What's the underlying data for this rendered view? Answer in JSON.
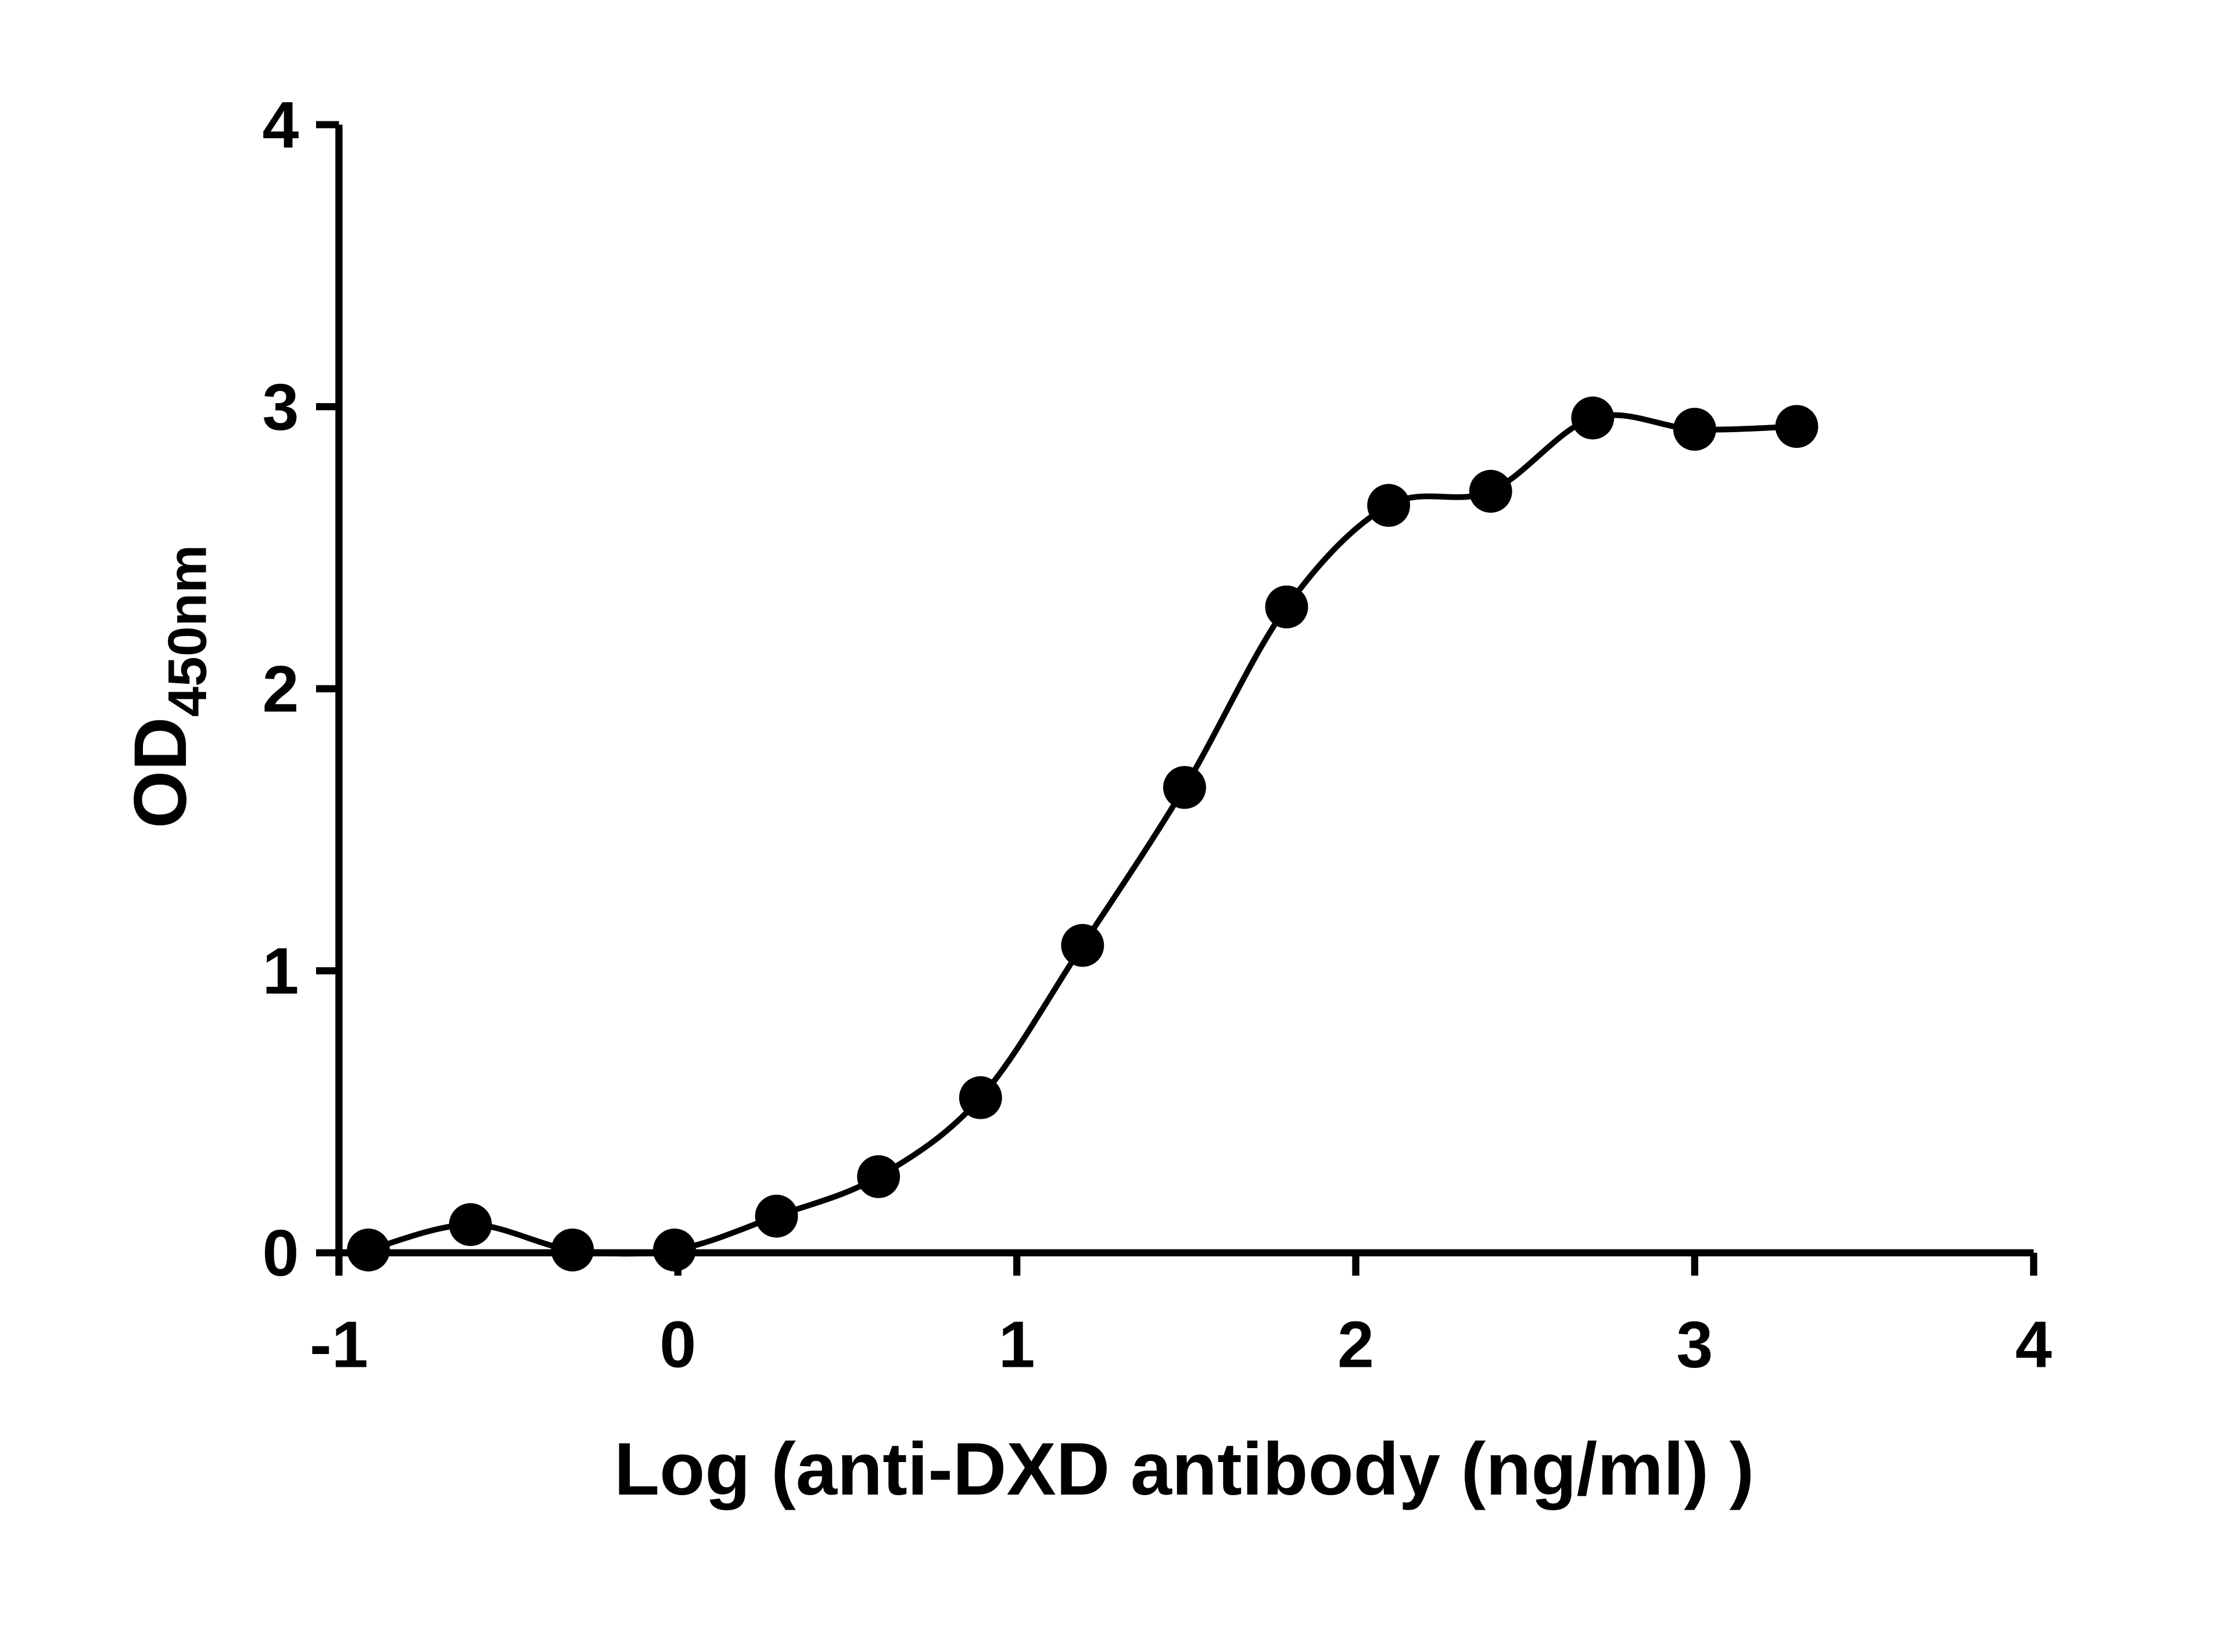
{
  "chart_data": {
    "type": "scatter",
    "x_label": "Log (anti-DXD antibody (ng/ml) )",
    "y_label": "OD",
    "y_label_subscript": "450nm",
    "x": [
      -0.913,
      -0.612,
      -0.311,
      -0.01,
      0.291,
      0.592,
      0.893,
      1.194,
      1.495,
      1.796,
      2.097,
      2.398,
      2.699,
      3.0,
      3.301
    ],
    "values": [
      0.01,
      0.1,
      0.01,
      0.01,
      0.13,
      0.27,
      0.55,
      1.09,
      1.65,
      2.29,
      2.65,
      2.7,
      2.96,
      2.92,
      2.93
    ],
    "color": "#000000",
    "fit_curve": true,
    "xlim": [
      -1,
      4
    ],
    "xticks": [
      -1,
      0,
      1,
      2,
      3,
      4
    ],
    "ylim": [
      0,
      4
    ],
    "yticks": [
      0,
      1,
      2,
      3,
      4
    ],
    "grid": false
  }
}
